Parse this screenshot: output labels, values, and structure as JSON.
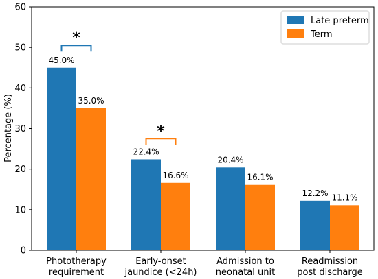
{
  "chart_data": {
    "type": "bar",
    "title": "",
    "xlabel": "",
    "ylabel": "Percentage (%)",
    "ylim": [
      0,
      60
    ],
    "yticks": [
      0,
      10,
      20,
      30,
      40,
      50,
      60
    ],
    "grid": false,
    "legend_position": "top-right",
    "categories": [
      [
        "Phototherapy",
        "requirement"
      ],
      [
        "Early-onset",
        "jaundice (<24h)"
      ],
      [
        "Admission to",
        "neonatal unit"
      ],
      [
        "Readmission",
        "post discharge"
      ]
    ],
    "series": [
      {
        "name": "Late preterm",
        "color": "#1f77b4",
        "values": [
          45.0,
          22.4,
          20.4,
          12.2
        ],
        "labels": [
          "45.0%",
          "22.4%",
          "20.4%",
          "12.2%"
        ]
      },
      {
        "name": "Term",
        "color": "#ff7f0e",
        "values": [
          35.0,
          16.6,
          16.1,
          11.1
        ],
        "labels": [
          "35.0%",
          "16.6%",
          "16.1%",
          "11.1%"
        ]
      }
    ],
    "significance": [
      {
        "category_index": 0,
        "marker": "*",
        "bracket_y": 50.5,
        "color": "#1f77b4"
      },
      {
        "category_index": 1,
        "marker": "*",
        "bracket_y": 27.5,
        "color": "#ff7f0e"
      }
    ]
  }
}
